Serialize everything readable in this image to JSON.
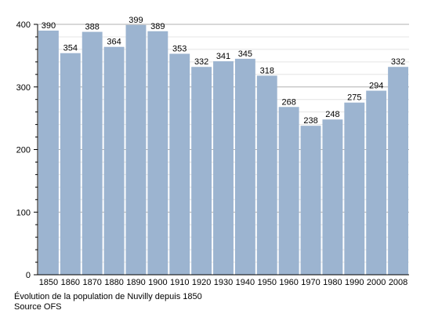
{
  "chart_data": {
    "type": "bar",
    "categories": [
      "1850",
      "1860",
      "1870",
      "1880",
      "1890",
      "1900",
      "1910",
      "1920",
      "1930",
      "1940",
      "1950",
      "1960",
      "1970",
      "1980",
      "1990",
      "2000",
      "2008"
    ],
    "values": [
      390,
      354,
      388,
      364,
      399,
      389,
      353,
      332,
      341,
      345,
      318,
      268,
      238,
      248,
      275,
      294,
      332
    ],
    "title": "",
    "xlabel": "",
    "ylabel": "",
    "ylim": [
      0,
      400
    ],
    "yticks": [
      0,
      100,
      200,
      300,
      400
    ],
    "grid": true,
    "bar_color": "#9cb4d0"
  },
  "caption": {
    "line1": "Évolution de la population de Nuvilly depuis 1850",
    "line2": "Source OFS"
  }
}
